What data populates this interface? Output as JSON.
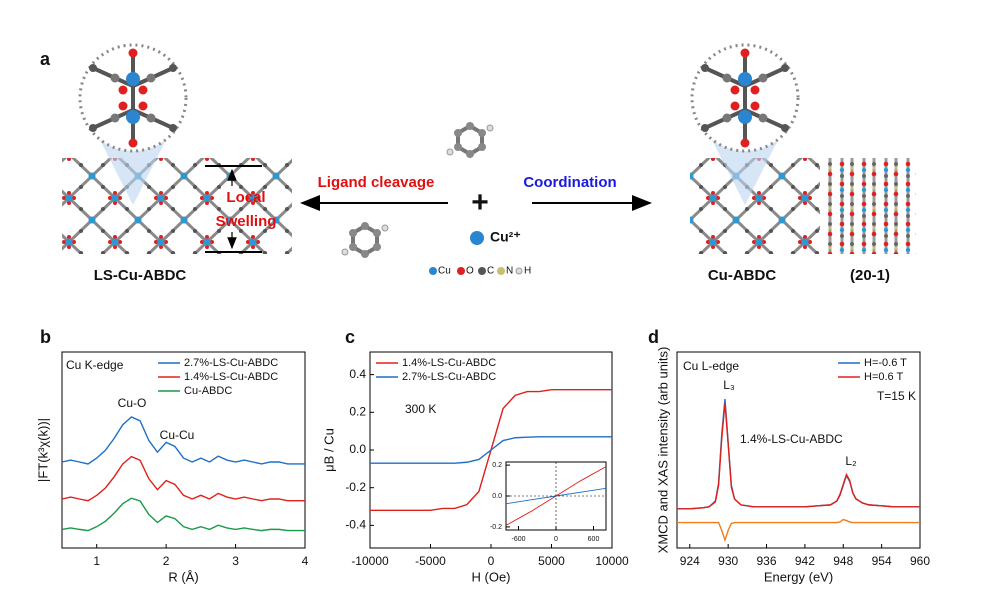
{
  "figure_a": {
    "label": "a",
    "left_label": "LS-Cu-ABDC",
    "swelling": [
      "Local",
      "Swelling"
    ],
    "left_arrow": "Ligand cleavage",
    "right_arrow": "Coordination",
    "plus": "+",
    "ion": "Cu²⁺",
    "atom_legend": [
      "Cu",
      "O",
      "C",
      "N",
      "H"
    ],
    "right_label": "Cu-ABDC",
    "right_label2": "(20-1)"
  },
  "chart_data": [
    {
      "type": "line",
      "label": "b",
      "xlabel": "R (Å)",
      "ylabel": "|FT(k³χ(k))|",
      "xlim": [
        0.5,
        4
      ],
      "xticks": [
        1,
        2,
        3,
        4
      ],
      "ylim": [
        0,
        8
      ],
      "legend": "upper right",
      "annotations": [
        "Cu K-edge",
        "Cu-O",
        "Cu-Cu"
      ],
      "x": [
        0.5,
        0.625,
        0.75,
        0.875,
        1.0,
        1.125,
        1.25,
        1.375,
        1.5,
        1.625,
        1.75,
        1.875,
        2.0,
        2.125,
        2.25,
        2.375,
        2.5,
        2.625,
        2.75,
        2.875,
        3.0,
        3.125,
        3.25,
        3.375,
        3.5,
        3.625,
        3.75,
        3.875,
        4.0
      ],
      "series": [
        {
          "name": "2.7%-LS-Cu-ABDC",
          "color": "#1f6fc4",
          "values": [
            3.51,
            3.59,
            3.51,
            3.43,
            3.67,
            3.99,
            4.47,
            5.03,
            5.35,
            5.19,
            4.39,
            3.91,
            4.31,
            4.15,
            3.67,
            3.51,
            3.67,
            3.51,
            3.75,
            3.59,
            3.51,
            3.59,
            3.51,
            3.43,
            3.51,
            3.51,
            3.43,
            3.43,
            3.43
          ]
        },
        {
          "name": "1.4%-LS-Cu-ABDC",
          "color": "#e0201b",
          "values": [
            2.0,
            2.08,
            2.0,
            1.93,
            2.15,
            2.45,
            2.9,
            3.43,
            3.73,
            3.58,
            2.83,
            2.38,
            2.75,
            2.6,
            2.15,
            2.0,
            2.15,
            2.0,
            2.23,
            2.08,
            2.0,
            2.08,
            2.0,
            1.93,
            2.0,
            2.0,
            1.93,
            1.93,
            1.93
          ]
        },
        {
          "name": "Cu-ABDC",
          "color": "#1a9a48",
          "values": [
            0.76,
            0.82,
            0.76,
            0.71,
            0.87,
            1.09,
            1.42,
            1.81,
            2.03,
            1.92,
            1.37,
            1.04,
            1.31,
            1.2,
            0.87,
            0.76,
            0.87,
            0.76,
            0.93,
            0.82,
            0.76,
            0.82,
            0.76,
            0.71,
            0.76,
            0.76,
            0.71,
            0.71,
            0.71
          ]
        }
      ]
    },
    {
      "type": "line",
      "label": "c",
      "xlabel": "H (Oe)",
      "ylabel": "μB / Cu",
      "xlim": [
        -10000,
        10000
      ],
      "xticks": [
        -10000,
        -5000,
        0,
        5000,
        10000
      ],
      "ylim": [
        -0.52,
        0.52
      ],
      "yticks": [
        -0.4,
        -0.2,
        {
          "value": 0,
          "label": "0.0"
        },
        0.2,
        0.4
      ],
      "legend": "upper left",
      "annotations": [
        "300 K"
      ],
      "x": [
        -10000,
        -9000,
        -8000,
        -7000,
        -6000,
        -5000,
        -4000,
        -3000,
        -2000,
        -1000,
        0,
        1000,
        2000,
        3000,
        4000,
        5000,
        6000,
        7000,
        8000,
        9000,
        10000
      ],
      "series": [
        {
          "name": "1.4%-LS-Cu-ABDC",
          "color": "#e0201b",
          "values": [
            -0.32,
            -0.32,
            -0.32,
            -0.32,
            -0.32,
            -0.32,
            -0.31,
            -0.31,
            -0.29,
            -0.22,
            0,
            0.22,
            0.29,
            0.31,
            0.31,
            0.32,
            0.32,
            0.32,
            0.32,
            0.32,
            0.32
          ]
        },
        {
          "name": "2.7%-LS-Cu-ABDC",
          "color": "#1f6fc4",
          "values": [
            -0.07,
            -0.07,
            -0.07,
            -0.07,
            -0.07,
            -0.07,
            -0.07,
            -0.07,
            -0.065,
            -0.05,
            0,
            0.05,
            0.065,
            0.068,
            0.07,
            0.07,
            0.07,
            0.07,
            0.07,
            0.07,
            0.07
          ]
        }
      ],
      "inset": {
        "xlim": [
          -800,
          800
        ],
        "xticks": [
          -600,
          0,
          600
        ],
        "ylim": [
          -0.22,
          0.22
        ],
        "yticks": [
          -0.2,
          {
            "value": 0,
            "label": "0.0"
          },
          0.2
        ],
        "x": [
          -800,
          -400,
          0,
          400,
          800
        ],
        "series": [
          {
            "color": "#e0201b",
            "values": [
              -0.19,
              -0.1,
              0.0,
              0.1,
              0.19
            ]
          },
          {
            "color": "#1f6fc4",
            "values": [
              -0.05,
              -0.025,
              0.0,
              0.025,
              0.05
            ]
          }
        ]
      }
    },
    {
      "type": "line",
      "label": "d",
      "xlabel": "Energy (eV)",
      "ylabel": "XMCD and XAS intensity (arb units)",
      "xlim": [
        922,
        960
      ],
      "xticks": [
        924,
        930,
        936,
        942,
        948,
        954,
        960
      ],
      "ylim": [
        0,
        10
      ],
      "legend": "upper right",
      "annotations": [
        "Cu L-edge",
        "L₃",
        "1.4%-LS-Cu-ABDC",
        "L₂",
        "T=15 K"
      ],
      "x": [
        922,
        924,
        926,
        927,
        928,
        928.5,
        929,
        929.5,
        930,
        930.5,
        931,
        932,
        934,
        936,
        938,
        940,
        942,
        944,
        946,
        947,
        947.5,
        948,
        948.5,
        949,
        949.5,
        950,
        951,
        952,
        954,
        956,
        958,
        960
      ],
      "series": [
        {
          "name": "H=-0.6 T",
          "color": "#1f6fc4",
          "values": [
            2.0,
            2.0,
            2.05,
            2.1,
            2.4,
            3.3,
            5.8,
            7.6,
            5.4,
            3.2,
            2.5,
            2.2,
            2.1,
            2.1,
            2.1,
            2.1,
            2.1,
            2.15,
            2.2,
            2.4,
            2.7,
            3.2,
            3.7,
            3.4,
            2.8,
            2.5,
            2.3,
            2.2,
            2.15,
            2.1,
            2.1,
            2.1
          ]
        },
        {
          "name": "H=0.6 T",
          "color": "#e0201b",
          "values": [
            2.0,
            2.0,
            2.05,
            2.1,
            2.35,
            3.2,
            5.6,
            7.4,
            5.3,
            3.1,
            2.5,
            2.2,
            2.1,
            2.1,
            2.1,
            2.1,
            2.1,
            2.15,
            2.2,
            2.4,
            2.75,
            3.25,
            3.75,
            3.45,
            2.8,
            2.5,
            2.3,
            2.2,
            2.15,
            2.1,
            2.1,
            2.1
          ]
        },
        {
          "color": "#f07d1a",
          "values": [
            1.3,
            1.3,
            1.3,
            1.3,
            1.3,
            1.3,
            0.9,
            0.4,
            0.9,
            1.25,
            1.3,
            1.3,
            1.3,
            1.3,
            1.3,
            1.3,
            1.3,
            1.3,
            1.3,
            1.3,
            1.33,
            1.45,
            1.4,
            1.33,
            1.3,
            1.3,
            1.3,
            1.3,
            1.3,
            1.3,
            1.3,
            1.3
          ]
        }
      ]
    }
  ]
}
